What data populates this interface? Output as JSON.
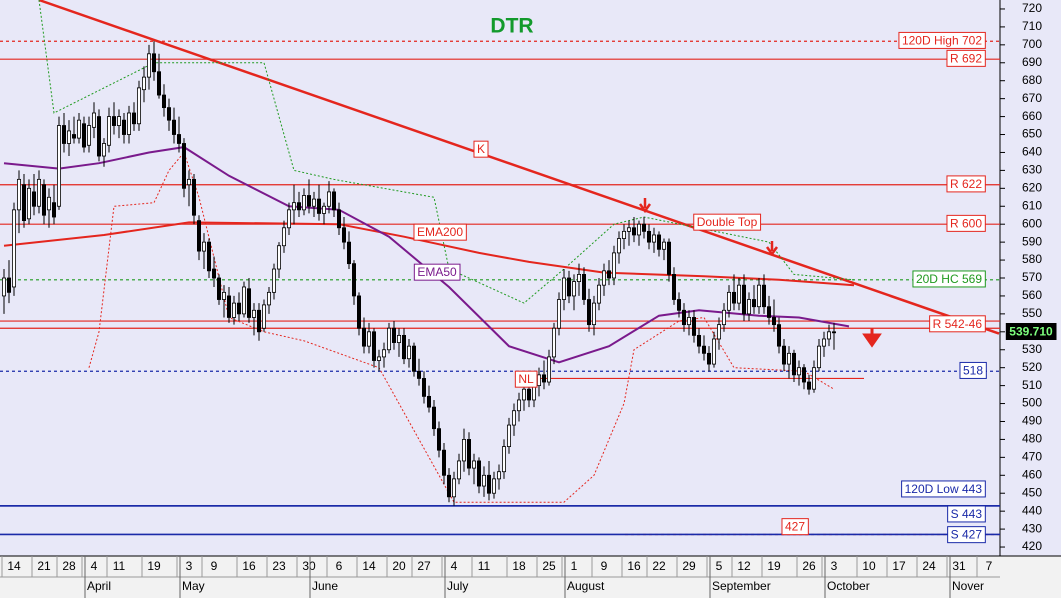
{
  "chart_data": {
    "type": "candlestick",
    "title": "DTR",
    "ylim": [
      415,
      725
    ],
    "yticks": [
      420,
      430,
      440,
      450,
      460,
      470,
      480,
      490,
      500,
      510,
      520,
      530,
      540,
      550,
      560,
      570,
      580,
      590,
      600,
      610,
      620,
      630,
      640,
      650,
      660,
      670,
      680,
      690,
      700,
      710,
      720
    ],
    "xlim": [
      0,
      200
    ],
    "xticks": [
      {
        "value": 2,
        "label": "14"
      },
      {
        "value": 8,
        "label": "21"
      },
      {
        "value": 13,
        "label": "28"
      },
      {
        "value": 18,
        "label": "4"
      },
      {
        "value": 23,
        "label": "11"
      },
      {
        "value": 30,
        "label": "19"
      },
      {
        "value": 37,
        "label": "3"
      },
      {
        "value": 42,
        "label": "9"
      },
      {
        "value": 49,
        "label": "16"
      },
      {
        "value": 55,
        "label": "23"
      },
      {
        "value": 61,
        "label": "30"
      },
      {
        "value": 67,
        "label": "6"
      },
      {
        "value": 73,
        "label": "14"
      },
      {
        "value": 79,
        "label": "20"
      },
      {
        "value": 84,
        "label": "27"
      },
      {
        "value": 90,
        "label": "4"
      },
      {
        "value": 96,
        "label": "11"
      },
      {
        "value": 103,
        "label": "18"
      },
      {
        "value": 109,
        "label": "25"
      },
      {
        "value": 114,
        "label": "1"
      },
      {
        "value": 120,
        "label": "9"
      },
      {
        "value": 126,
        "label": "16"
      },
      {
        "value": 131,
        "label": "22"
      },
      {
        "value": 137,
        "label": "29"
      },
      {
        "value": 143,
        "label": "5"
      },
      {
        "value": 148,
        "label": "12"
      },
      {
        "value": 154,
        "label": "19"
      },
      {
        "value": 161,
        "label": "26"
      },
      {
        "value": 166,
        "label": "3"
      },
      {
        "value": 173,
        "label": "10"
      },
      {
        "value": 179,
        "label": "17"
      },
      {
        "value": 185,
        "label": "24"
      },
      {
        "value": 191,
        "label": "31"
      },
      {
        "value": 197,
        "label": "7"
      }
    ],
    "month_ticks": [
      {
        "value": 17,
        "label": "April"
      },
      {
        "value": 36,
        "label": "May"
      },
      {
        "value": 62,
        "label": "June"
      },
      {
        "value": 89,
        "label": "July"
      },
      {
        "value": 113,
        "label": "August"
      },
      {
        "value": 142,
        "label": "September"
      },
      {
        "value": 165,
        "label": "October"
      },
      {
        "value": 190,
        "label": "Nover"
      }
    ],
    "ohlc": [
      [
        560,
        575,
        550,
        570
      ],
      [
        570,
        580,
        556,
        562
      ],
      [
        565,
        612,
        560,
        608
      ],
      [
        608,
        630,
        595,
        625
      ],
      [
        622,
        628,
        598,
        602
      ],
      [
        603,
        625,
        600,
        620
      ],
      [
        618,
        628,
        605,
        610
      ],
      [
        610,
        630,
        606,
        625
      ],
      [
        622,
        625,
        600,
        605
      ],
      [
        608,
        620,
        598,
        615
      ],
      [
        612,
        622,
        600,
        604
      ],
      [
        610,
        660,
        608,
        655
      ],
      [
        655,
        662,
        640,
        645
      ],
      [
        645,
        658,
        638,
        652
      ],
      [
        650,
        660,
        645,
        648
      ],
      [
        648,
        662,
        645,
        658
      ],
      [
        656,
        660,
        640,
        643
      ],
      [
        644,
        660,
        640,
        655
      ],
      [
        654,
        668,
        648,
        662
      ],
      [
        660,
        664,
        635,
        638
      ],
      [
        638,
        648,
        632,
        645
      ],
      [
        644,
        665,
        640,
        660
      ],
      [
        660,
        668,
        650,
        655
      ],
      [
        655,
        664,
        648,
        660
      ],
      [
        658,
        662,
        645,
        650
      ],
      [
        650,
        666,
        645,
        662
      ],
      [
        662,
        668,
        652,
        656
      ],
      [
        656,
        680,
        652,
        676
      ],
      [
        675,
        688,
        668,
        682
      ],
      [
        682,
        700,
        675,
        695
      ],
      [
        695,
        702,
        680,
        685
      ],
      [
        685,
        695,
        670,
        672
      ],
      [
        672,
        678,
        660,
        665
      ],
      [
        665,
        670,
        652,
        658
      ],
      [
        658,
        665,
        645,
        650
      ],
      [
        650,
        660,
        640,
        645
      ],
      [
        645,
        648,
        615,
        620
      ],
      [
        622,
        630,
        610,
        625
      ],
      [
        625,
        628,
        600,
        605
      ],
      [
        602,
        605,
        580,
        585
      ],
      [
        585,
        595,
        575,
        590
      ],
      [
        590,
        592,
        570,
        574
      ],
      [
        575,
        582,
        565,
        570
      ],
      [
        570,
        572,
        555,
        558
      ],
      [
        558,
        566,
        548,
        562
      ],
      [
        560,
        565,
        545,
        548
      ],
      [
        548,
        560,
        544,
        556
      ],
      [
        556,
        562,
        546,
        550
      ],
      [
        550,
        568,
        548,
        565
      ],
      [
        564,
        570,
        545,
        548
      ],
      [
        548,
        556,
        538,
        552
      ],
      [
        552,
        556,
        535,
        540
      ],
      [
        542,
        558,
        540,
        555
      ],
      [
        555,
        565,
        550,
        562
      ],
      [
        562,
        578,
        558,
        575
      ],
      [
        575,
        590,
        570,
        588
      ],
      [
        588,
        602,
        584,
        598
      ],
      [
        598,
        612,
        594,
        608
      ],
      [
        608,
        622,
        600,
        612
      ],
      [
        612,
        618,
        604,
        608
      ],
      [
        608,
        620,
        605,
        616
      ],
      [
        616,
        625,
        606,
        610
      ],
      [
        610,
        618,
        604,
        614
      ],
      [
        614,
        622,
        602,
        606
      ],
      [
        606,
        612,
        600,
        610
      ],
      [
        610,
        624,
        606,
        618
      ],
      [
        618,
        620,
        604,
        608
      ],
      [
        608,
        612,
        594,
        598
      ],
      [
        598,
        604,
        586,
        590
      ],
      [
        590,
        596,
        575,
        578
      ],
      [
        578,
        580,
        555,
        560
      ],
      [
        560,
        562,
        538,
        542
      ],
      [
        542,
        548,
        528,
        532
      ],
      [
        532,
        545,
        528,
        540
      ],
      [
        540,
        542,
        520,
        524
      ],
      [
        524,
        530,
        518,
        526
      ],
      [
        526,
        534,
        520,
        530
      ],
      [
        530,
        545,
        528,
        542
      ],
      [
        542,
        546,
        530,
        534
      ],
      [
        534,
        542,
        526,
        538
      ],
      [
        538,
        542,
        522,
        525
      ],
      [
        525,
        536,
        520,
        532
      ],
      [
        532,
        534,
        515,
        518
      ],
      [
        518,
        525,
        510,
        514
      ],
      [
        514,
        518,
        500,
        504
      ],
      [
        504,
        510,
        495,
        498
      ],
      [
        498,
        502,
        482,
        486
      ],
      [
        486,
        490,
        470,
        474
      ],
      [
        474,
        478,
        455,
        460
      ],
      [
        460,
        464,
        445,
        448
      ],
      [
        448,
        462,
        443,
        458
      ],
      [
        458,
        472,
        455,
        468
      ],
      [
        468,
        486,
        462,
        480
      ],
      [
        480,
        484,
        460,
        464
      ],
      [
        464,
        472,
        455,
        468
      ],
      [
        468,
        470,
        450,
        454
      ],
      [
        454,
        465,
        448,
        460
      ],
      [
        460,
        468,
        446,
        450
      ],
      [
        450,
        462,
        447,
        458
      ],
      [
        458,
        466,
        452,
        462
      ],
      [
        462,
        480,
        458,
        476
      ],
      [
        476,
        492,
        472,
        488
      ],
      [
        488,
        500,
        482,
        496
      ],
      [
        496,
        506,
        490,
        502
      ],
      [
        502,
        512,
        496,
        508
      ],
      [
        508,
        510,
        498,
        502
      ],
      [
        502,
        512,
        498,
        510
      ],
      [
        510,
        520,
        504,
        516
      ],
      [
        516,
        524,
        508,
        512
      ],
      [
        512,
        530,
        510,
        526
      ],
      [
        526,
        545,
        522,
        542
      ],
      [
        542,
        562,
        538,
        558
      ],
      [
        558,
        575,
        552,
        570
      ],
      [
        570,
        574,
        556,
        560
      ],
      [
        560,
        572,
        552,
        568
      ],
      [
        568,
        578,
        560,
        572
      ],
      [
        572,
        576,
        555,
        558
      ],
      [
        558,
        564,
        540,
        544
      ],
      [
        544,
        560,
        538,
        556
      ],
      [
        556,
        570,
        552,
        566
      ],
      [
        566,
        578,
        560,
        574
      ],
      [
        574,
        580,
        566,
        570
      ],
      [
        570,
        588,
        566,
        584
      ],
      [
        584,
        596,
        578,
        592
      ],
      [
        592,
        600,
        586,
        596
      ],
      [
        596,
        602,
        588,
        598
      ],
      [
        598,
        604,
        590,
        594
      ],
      [
        594,
        602,
        588,
        600
      ],
      [
        600,
        604,
        592,
        596
      ],
      [
        596,
        600,
        586,
        590
      ],
      [
        590,
        598,
        584,
        594
      ],
      [
        594,
        596,
        582,
        586
      ],
      [
        586,
        592,
        580,
        590
      ],
      [
        590,
        592,
        568,
        572
      ],
      [
        572,
        576,
        555,
        558
      ],
      [
        558,
        562,
        548,
        552
      ],
      [
        552,
        556,
        540,
        544
      ],
      [
        544,
        552,
        538,
        548
      ],
      [
        548,
        552,
        534,
        538
      ],
      [
        538,
        542,
        528,
        532
      ],
      [
        532,
        538,
        524,
        528
      ],
      [
        528,
        532,
        518,
        522
      ],
      [
        522,
        540,
        520,
        536
      ],
      [
        536,
        548,
        530,
        544
      ],
      [
        544,
        556,
        540,
        552
      ],
      [
        552,
        566,
        548,
        562
      ],
      [
        562,
        572,
        552,
        556
      ],
      [
        556,
        570,
        552,
        566
      ],
      [
        566,
        572,
        546,
        550
      ],
      [
        550,
        562,
        546,
        558
      ],
      [
        558,
        566,
        550,
        554
      ],
      [
        554,
        570,
        550,
        566
      ],
      [
        566,
        572,
        550,
        554
      ],
      [
        554,
        560,
        544,
        548
      ],
      [
        548,
        558,
        540,
        544
      ],
      [
        544,
        548,
        528,
        532
      ],
      [
        532,
        536,
        518,
        522
      ],
      [
        522,
        532,
        514,
        528
      ],
      [
        528,
        530,
        512,
        516
      ],
      [
        516,
        524,
        510,
        520
      ],
      [
        520,
        522,
        508,
        512
      ],
      [
        512,
        516,
        505,
        508
      ],
      [
        508,
        524,
        506,
        520
      ],
      [
        520,
        536,
        518,
        532
      ],
      [
        532,
        540,
        526,
        536
      ],
      [
        536,
        544,
        532,
        540
      ],
      [
        540,
        545,
        530,
        539.71
      ]
    ],
    "series": [
      {
        "name": "EMA200",
        "color": "#e4261e",
        "x": [
          0,
          20,
          37,
          67,
          80,
          95,
          105,
          120,
          140,
          155,
          170
        ],
        "values": [
          588,
          594,
          601,
          600,
          593,
          584,
          579,
          573,
          571,
          569,
          566
        ]
      },
      {
        "name": "EMA50",
        "color": "#7a1a8c",
        "x": [
          0,
          11,
          19,
          29,
          36,
          45,
          57,
          67,
          77,
          89,
          101,
          111,
          121,
          131,
          139,
          151,
          159,
          169
        ],
        "values": [
          634,
          631,
          634,
          640,
          643,
          627,
          610,
          608,
          593,
          565,
          532,
          523,
          532,
          549,
          552,
          549,
          548,
          543
        ]
      }
    ],
    "bands": [
      {
        "color": "#e4261e",
        "x": [
          17,
          19,
          22,
          30,
          33,
          36,
          39,
          45,
          52,
          60,
          75,
          90,
          112,
          118,
          124,
          126,
          135,
          140,
          146,
          160,
          166
        ],
        "values": [
          520,
          540,
          610,
          612,
          630,
          640,
          615,
          548,
          540,
          535,
          520,
          445,
          445,
          460,
          500,
          530,
          546,
          548,
          520,
          518,
          508
        ]
      },
      {
        "color": "#1f9a1f",
        "x": [
          7,
          10,
          30,
          52,
          58,
          66,
          86,
          89,
          104,
          112,
          122,
          128,
          153,
          158,
          170
        ],
        "values": [
          725,
          662,
          690,
          690,
          630,
          625,
          615,
          575,
          556,
          575,
          600,
          604,
          590,
          572,
          569
        ]
      }
    ],
    "trendline": {
      "label": "K",
      "color": "#e4261e",
      "x": [
        7,
        199
      ],
      "values": [
        725,
        539
      ]
    },
    "neckline": {
      "label": "NL",
      "color": "#e4261e",
      "x": [
        107,
        172
      ],
      "values": [
        514,
        514
      ]
    },
    "pattern_label": "Double Top",
    "levels": [
      {
        "label": "120D High 702",
        "values": [
          702
        ],
        "color": "#e4261e",
        "style": "dashed"
      },
      {
        "label": "R 692",
        "values": [
          692
        ],
        "color": "#e4261e",
        "style": "solid"
      },
      {
        "label": "R 622",
        "values": [
          622
        ],
        "color": "#e4261e",
        "style": "solid"
      },
      {
        "label": "R 600",
        "values": [
          600
        ],
        "color": "#e4261e",
        "style": "solid"
      },
      {
        "label": "20D HC 569",
        "values": [
          569
        ],
        "color": "#1f9a1f",
        "style": "dashed"
      },
      {
        "label": "R 542-46",
        "values": [
          542,
          546
        ],
        "color": "#e4261e",
        "style": "solid"
      },
      {
        "label": "518",
        "values": [
          518
        ],
        "color": "#1a2aa8",
        "style": "dashed"
      },
      {
        "label": "120D Low 443",
        "values": [
          443
        ],
        "color": "#1a2aa8",
        "style": "solid"
      },
      {
        "label": "S 443",
        "values": [
          443
        ],
        "color": "#1a2aa8",
        "style": "solid"
      },
      {
        "label": "427",
        "values": [
          427
        ],
        "color": "#e4261e",
        "style": "dashed"
      },
      {
        "label": "S 427",
        "values": [
          427
        ],
        "color": "#1a2aa8",
        "style": "solid"
      }
    ],
    "last_price": {
      "value": 539.71,
      "label": "539.710"
    }
  }
}
